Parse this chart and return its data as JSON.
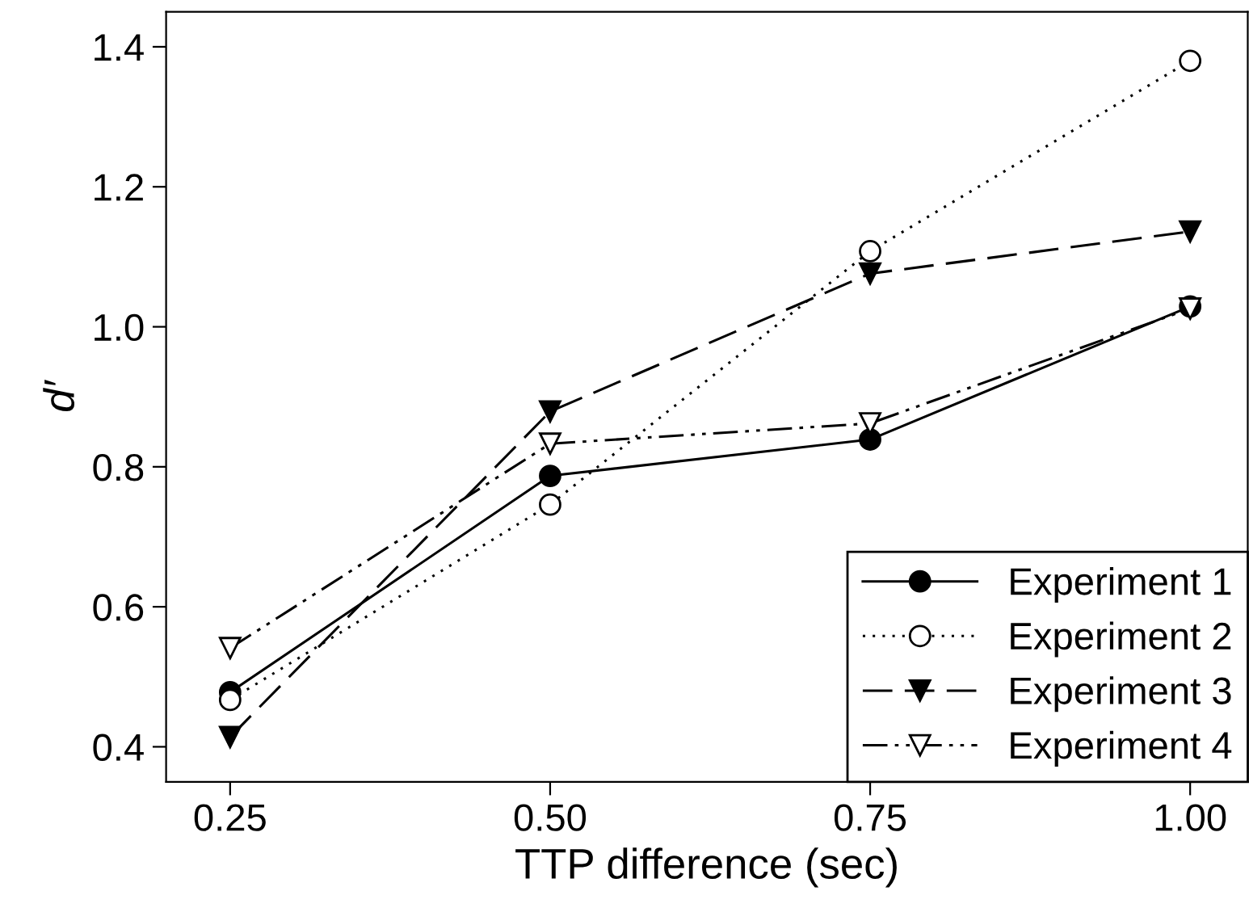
{
  "chart_data": {
    "type": "line",
    "xlabel": "TTP difference (sec)",
    "ylabel": "d′",
    "x": [
      0.25,
      0.5,
      0.75,
      1.0
    ],
    "xlim": [
      0.2,
      1.045
    ],
    "xticks": [
      {
        "value": 0.25,
        "label": "0.25"
      },
      {
        "value": 0.5,
        "label": "0.50"
      },
      {
        "value": 0.75,
        "label": "0.75"
      },
      {
        "value": 1.0,
        "label": "1.00"
      }
    ],
    "ylim": [
      0.35,
      1.45
    ],
    "yticks": [
      0.4,
      0.6,
      0.8,
      {
        "value": 1.0,
        "label": "1.0"
      },
      1.2,
      1.4
    ],
    "grid": false,
    "legend": "bottom right",
    "series": [
      {
        "name": "Experiment 1",
        "color": "#000000",
        "marker": "circle",
        "line_style": "solid",
        "values": [
          0.478,
          0.787,
          0.839,
          1.029
        ]
      },
      {
        "name": "Experiment 2",
        "color": "#000000",
        "marker": "circle",
        "line_style": "dotted",
        "values": [
          0.467,
          0.746,
          1.108,
          1.38
        ]
      },
      {
        "name": "Experiment 3",
        "color": "#000000",
        "marker": "triangle",
        "line_style": "dashed",
        "values": [
          0.414,
          0.879,
          1.076,
          1.136
        ]
      },
      {
        "name": "Experiment 4",
        "color": "#000000",
        "marker": "triangle",
        "line_style": "dashdot",
        "values": [
          0.541,
          0.833,
          0.862,
          1.026
        ]
      }
    ]
  }
}
